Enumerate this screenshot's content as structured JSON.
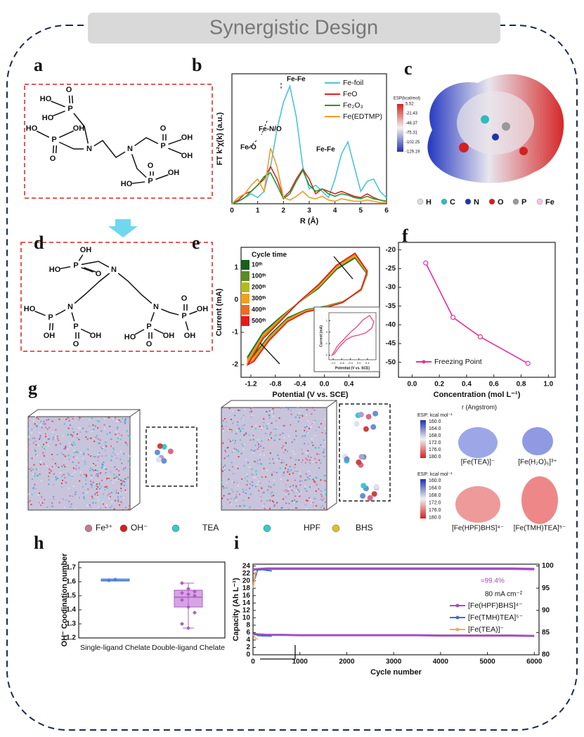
{
  "title": "Synergistic Design",
  "panel_labels": [
    "a",
    "b",
    "c",
    "d",
    "e",
    "f",
    "g",
    "h",
    "i"
  ],
  "structure_a": {
    "atoms": [
      "O",
      "P",
      "HO",
      "HO",
      "HO",
      "OH",
      "P",
      "O",
      "N",
      "N",
      "O",
      "P",
      "OH",
      "OH",
      "O",
      "P",
      "OH",
      "HO"
    ]
  },
  "structure_d": {
    "atoms": [
      "OH",
      "P",
      "HO",
      "O",
      "N",
      "N",
      "N",
      "HO",
      "P",
      "OH",
      "P",
      "O",
      "OH",
      "P",
      "OH",
      "O",
      "OH",
      "P",
      "HO",
      "OH",
      "O"
    ]
  },
  "esp_c": {
    "title": "ESP(kcal/mol)",
    "scale": [
      5.52,
      -21.43,
      -48.37,
      -75.31,
      -102.25,
      -129.19
    ],
    "atoms": [
      "H",
      "C",
      "N",
      "O",
      "P",
      "Fe"
    ],
    "atom_colors": [
      "#dddddd",
      "#2bbcbc",
      "#2233aa",
      "#d42020",
      "#999999",
      "#f3c6e3"
    ]
  },
  "md_g": {
    "legend": [
      "Fe³⁺",
      "OH⁻",
      "TEA",
      "HPF",
      "BHS"
    ],
    "r_label": "r (Angstrom)",
    "esp_label": "ESP: kcal mol⁻¹",
    "esp_ticks": [
      "160.0",
      "164.0",
      "168.0",
      "172.0",
      "176.0",
      "180.0"
    ],
    "species": [
      "[Fe(TEA)]⁻",
      "[Fe(H₂O)₆]³⁺",
      "[Fe(HPF)BHS]⁴⁻",
      "[Fe(TMH)TEA]⁵⁻"
    ]
  },
  "chart_data": [
    {
      "type": "line",
      "xlabel": "R (Å)",
      "ylabel": "FT k²χ(k) (a.u.)",
      "xlim": [
        0,
        6
      ],
      "ylim": [
        0,
        1.05
      ],
      "xticks": [
        0,
        1,
        2,
        3,
        4,
        5,
        6
      ],
      "x": [
        0,
        0.25,
        0.5,
        0.75,
        1,
        1.25,
        1.5,
        1.75,
        2,
        2.25,
        2.5,
        2.75,
        3,
        3.25,
        3.5,
        3.75,
        4,
        4.25,
        4.5,
        4.75,
        5,
        5.25,
        5.5,
        5.75,
        6
      ],
      "series": [
        {
          "name": "Fe-foil",
          "color": "#4cc4d0",
          "values": [
            0,
            0.02,
            0.05,
            0.08,
            0.05,
            0.1,
            0.3,
            0.6,
            0.82,
            0.95,
            0.7,
            0.3,
            0.12,
            0.15,
            0.1,
            0.05,
            0.2,
            0.4,
            0.5,
            0.3,
            0.1,
            0.18,
            0.2,
            0.1,
            0.05
          ]
        },
        {
          "name": "FeO",
          "color": "#e0202a",
          "values": [
            0,
            0.03,
            0.08,
            0.1,
            0.15,
            0.2,
            0.3,
            0.2,
            0.05,
            0.1,
            0.2,
            0.28,
            0.2,
            0.08,
            0.12,
            0.1,
            0.08,
            0.1,
            0.08,
            0.06,
            0.05,
            0.08,
            0.05,
            0.03,
            0.02
          ]
        },
        {
          "name": "Fe₂O₃",
          "color": "#1e9a2a",
          "values": [
            0,
            0.02,
            0.05,
            0.1,
            0.15,
            0.22,
            0.25,
            0.15,
            0.04,
            0.08,
            0.18,
            0.27,
            0.15,
            0.1,
            0.12,
            0.08,
            0.06,
            0.08,
            0.07,
            0.05,
            0.04,
            0.06,
            0.04,
            0.03,
            0.02
          ]
        },
        {
          "name": "Fe(EDTMP)",
          "color": "#f39a2a",
          "values": [
            0,
            0.05,
            0.08,
            0.15,
            0.2,
            0.1,
            0.45,
            0.3,
            0.05,
            0.03,
            0.06,
            0.1,
            0.05,
            0.04,
            0.06,
            0.03,
            0.02,
            0.04,
            0.03,
            0.02,
            0.02,
            0.03,
            0.02,
            0.01,
            0.01
          ]
        }
      ],
      "annotations": [
        "Fe-Fe",
        "Fe-N/O",
        "Fe-O",
        "Fe-Fe"
      ]
    },
    {
      "type": "line",
      "xlabel": "Potential (V vs. SCE)",
      "ylabel": "Current (mA)",
      "legend_title": "Cycle time",
      "xlim": [
        -1.36,
        0.9
      ],
      "ylim": [
        -2.39,
        1.63
      ],
      "xticks": [
        -1.2,
        -0.8,
        -0.4,
        {
          "value": 0,
          "label": "0.0"
        },
        0.4
      ],
      "yticks": [
        1,
        0,
        -1,
        -2
      ],
      "x": [
        -1.25,
        -1.0,
        -0.7,
        -0.4,
        -0.1,
        0.2,
        0.5,
        0.7,
        0.6,
        0.3,
        0.0,
        -0.3,
        -0.6,
        -0.9,
        -1.15,
        -1.25
      ],
      "series": [
        {
          "name": "10ᵗʰ",
          "color": "#1a5e1a",
          "values": [
            -1.75,
            -1.0,
            -0.5,
            -0.05,
            0.35,
            0.95,
            1.3,
            0.8,
            0.3,
            -0.05,
            -0.2,
            -0.3,
            -0.55,
            -1.1,
            -1.7,
            -1.75
          ]
        },
        {
          "name": "100ᵗʰ",
          "color": "#5b8c1e",
          "values": [
            -1.8,
            -1.05,
            -0.52,
            -0.05,
            0.37,
            0.98,
            1.33,
            0.82,
            0.3,
            -0.06,
            -0.21,
            -0.31,
            -0.57,
            -1.13,
            -1.74,
            -1.8
          ]
        },
        {
          "name": "200ᵗʰ",
          "color": "#b5b81c",
          "values": [
            -1.85,
            -1.08,
            -0.55,
            -0.04,
            0.4,
            1.0,
            1.36,
            0.84,
            0.31,
            -0.06,
            -0.22,
            -0.33,
            -0.6,
            -1.16,
            -1.78,
            -1.85
          ]
        },
        {
          "name": "300ᵗʰ",
          "color": "#f0a020",
          "values": [
            -1.9,
            -1.12,
            -0.57,
            -0.04,
            0.42,
            1.03,
            1.39,
            0.86,
            0.32,
            -0.07,
            -0.23,
            -0.34,
            -0.62,
            -1.19,
            -1.82,
            -1.9
          ]
        },
        {
          "name": "400ᵗʰ",
          "color": "#f06a20",
          "values": [
            -1.95,
            -1.15,
            -0.6,
            -0.03,
            0.45,
            1.06,
            1.42,
            0.88,
            0.33,
            -0.07,
            -0.24,
            -0.36,
            -0.65,
            -1.22,
            -1.86,
            -1.95
          ]
        },
        {
          "name": "500ᵗʰ",
          "color": "#e31a1a",
          "values": [
            -2.0,
            -1.2,
            -0.62,
            -0.03,
            0.47,
            1.08,
            1.45,
            0.9,
            0.34,
            -0.08,
            -0.25,
            -0.37,
            -0.67,
            -1.25,
            -1.9,
            -2.0
          ]
        }
      ],
      "inset": {
        "xlabel": "Potential (V vs. SCE)",
        "ylabel": "Current (mA)",
        "color": "#e8508a",
        "xlim": [
          -1.4,
          0.8
        ],
        "ylim": [
          -2.4,
          1.7
        ],
        "xticks": [
          -1.2,
          -0.8,
          -0.4,
          {
            "value": 0,
            "label": "0.0"
          },
          0.4
        ],
        "yticks": [
          1,
          0,
          -1,
          -2
        ]
      }
    },
    {
      "type": "line",
      "xlabel": "Concentration (mol L⁻¹)",
      "xlim": [
        -0.1,
        1.05
      ],
      "ylim": [
        -54,
        -18
      ],
      "xticks": [
        {
          "value": 0,
          "label": "0.0"
        },
        0.2,
        0.4,
        0.6,
        0.8,
        {
          "value": 1,
          "label": "1.0"
        }
      ],
      "yticks": [
        -20,
        -25,
        -30,
        -35,
        -40,
        -45,
        -50
      ],
      "series": [
        {
          "name": "Freezing Point",
          "color": "#e8309a",
          "x": [
            0.1,
            0.3,
            0.5,
            0.85
          ],
          "values": [
            -23.5,
            -38,
            -43.2,
            -50.3
          ]
        }
      ]
    },
    {
      "type": "box",
      "ylabel": "OH⁻ Coodination number",
      "ylim": [
        1.2,
        1.74
      ],
      "yticks": [
        1.2,
        1.3,
        1.4,
        1.5,
        1.6,
        1.7
      ],
      "categories": [
        "Single-ligand Chelate",
        "Double-ligand Chelate"
      ],
      "boxes": [
        {
          "color": "#4a7fd0",
          "min": 1.605,
          "q1": 1.605,
          "median": 1.61,
          "q3": 1.62,
          "max": 1.62,
          "points": [
            1.61,
            1.615
          ]
        },
        {
          "color": "#b05cc8",
          "min": 1.27,
          "q1": 1.42,
          "median": 1.49,
          "q3": 1.54,
          "max": 1.59,
          "points": [
            1.59,
            1.55,
            1.53,
            1.52,
            1.51,
            1.5,
            1.47,
            1.42,
            1.38,
            1.3,
            1.27
          ]
        }
      ]
    },
    {
      "type": "line",
      "xlabel": "Cycle number",
      "ylabel": "Capacity (Ah L⁻¹)",
      "xlim": [
        0,
        6100
      ],
      "ylim": [
        0,
        24.5
      ],
      "y2lim": [
        80,
        100.4
      ],
      "xticks": [
        0,
        1000,
        2000,
        3000,
        4000,
        5000,
        6000
      ],
      "yticks": [
        0,
        2,
        4,
        6,
        8,
        10,
        12,
        14,
        16,
        18,
        20,
        22,
        24
      ],
      "y2ticks": [
        80,
        85,
        90,
        95,
        100
      ],
      "series": [
        {
          "name": "[Fe(HPF)BHS]⁴⁻",
          "color": "#a050c0",
          "x": [
            1,
            300,
            600,
            1000,
            1500,
            2000,
            2500,
            3000,
            3500,
            4000,
            4500,
            5000,
            5500,
            6000
          ],
          "values": [
            5.6,
            5.4,
            5.4,
            5.3,
            5.3,
            5.3,
            5.3,
            5.3,
            5.3,
            5.2,
            5.2,
            5.2,
            5.2,
            5.1
          ],
          "ce": [
            99.2,
            99.4,
            99.4,
            99.4,
            99.4,
            99.4,
            99.4,
            99.4,
            99.4,
            99.4,
            99.4,
            99.4,
            99.4,
            99.3
          ]
        },
        {
          "name": "[Fe(TMH)TEA]⁵⁻",
          "color": "#3a70c8",
          "x": [
            1,
            100,
            200,
            300,
            400
          ],
          "values": [
            5.8,
            5.2,
            5.1,
            5.1,
            5.0
          ],
          "ce": [
            96,
            99.1,
            99.2,
            99,
            98.9
          ]
        },
        {
          "name": "[Fe(TEA)]⁻",
          "color": "#f0a860",
          "x": [
            1,
            50,
            100
          ],
          "values": [
            5.5,
            4.5,
            4.2
          ],
          "ce": [
            95,
            98.5,
            98.6
          ]
        }
      ],
      "annotations": [
        "≈99.4%",
        "80 mA cm⁻²"
      ]
    }
  ]
}
